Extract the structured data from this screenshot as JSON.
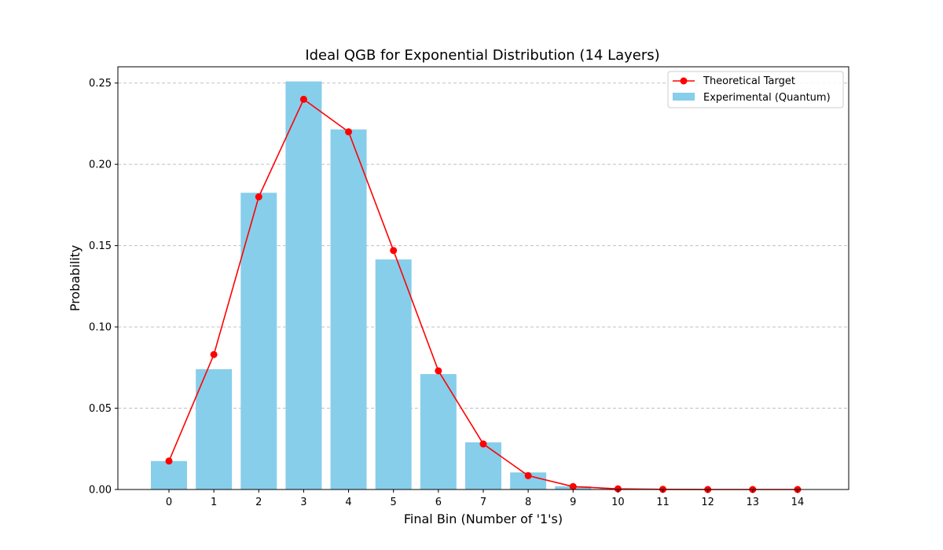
{
  "chart_data": {
    "type": "bar",
    "title": "Ideal QGB for Exponential Distribution (14 Layers)",
    "xlabel": "Final Bin (Number of '1's)",
    "ylabel": "Probability",
    "categories": [
      "0",
      "1",
      "2",
      "3",
      "4",
      "5",
      "6",
      "7",
      "8",
      "9",
      "10",
      "11",
      "12",
      "13",
      "14"
    ],
    "ylim": [
      0,
      0.26
    ],
    "yticks": [
      "0.00",
      "0.05",
      "0.10",
      "0.15",
      "0.20",
      "0.25"
    ],
    "grid": "y-dashed",
    "legend_position": "top-right",
    "series": [
      {
        "name": "Experimental (Quantum)",
        "type": "bar",
        "color": "#87ceeb",
        "values": [
          0.0175,
          0.074,
          0.1825,
          0.251,
          0.2215,
          0.1415,
          0.071,
          0.029,
          0.0105,
          0.002,
          0.0005,
          0,
          0,
          0,
          0
        ]
      },
      {
        "name": "Theoretical Target",
        "type": "line",
        "color": "#ff0000",
        "marker": "circle",
        "values": [
          0.0175,
          0.083,
          0.18,
          0.24,
          0.22,
          0.147,
          0.073,
          0.028,
          0.0085,
          0.0018,
          0.0004,
          0.0001,
          0,
          0,
          0
        ]
      }
    ]
  }
}
